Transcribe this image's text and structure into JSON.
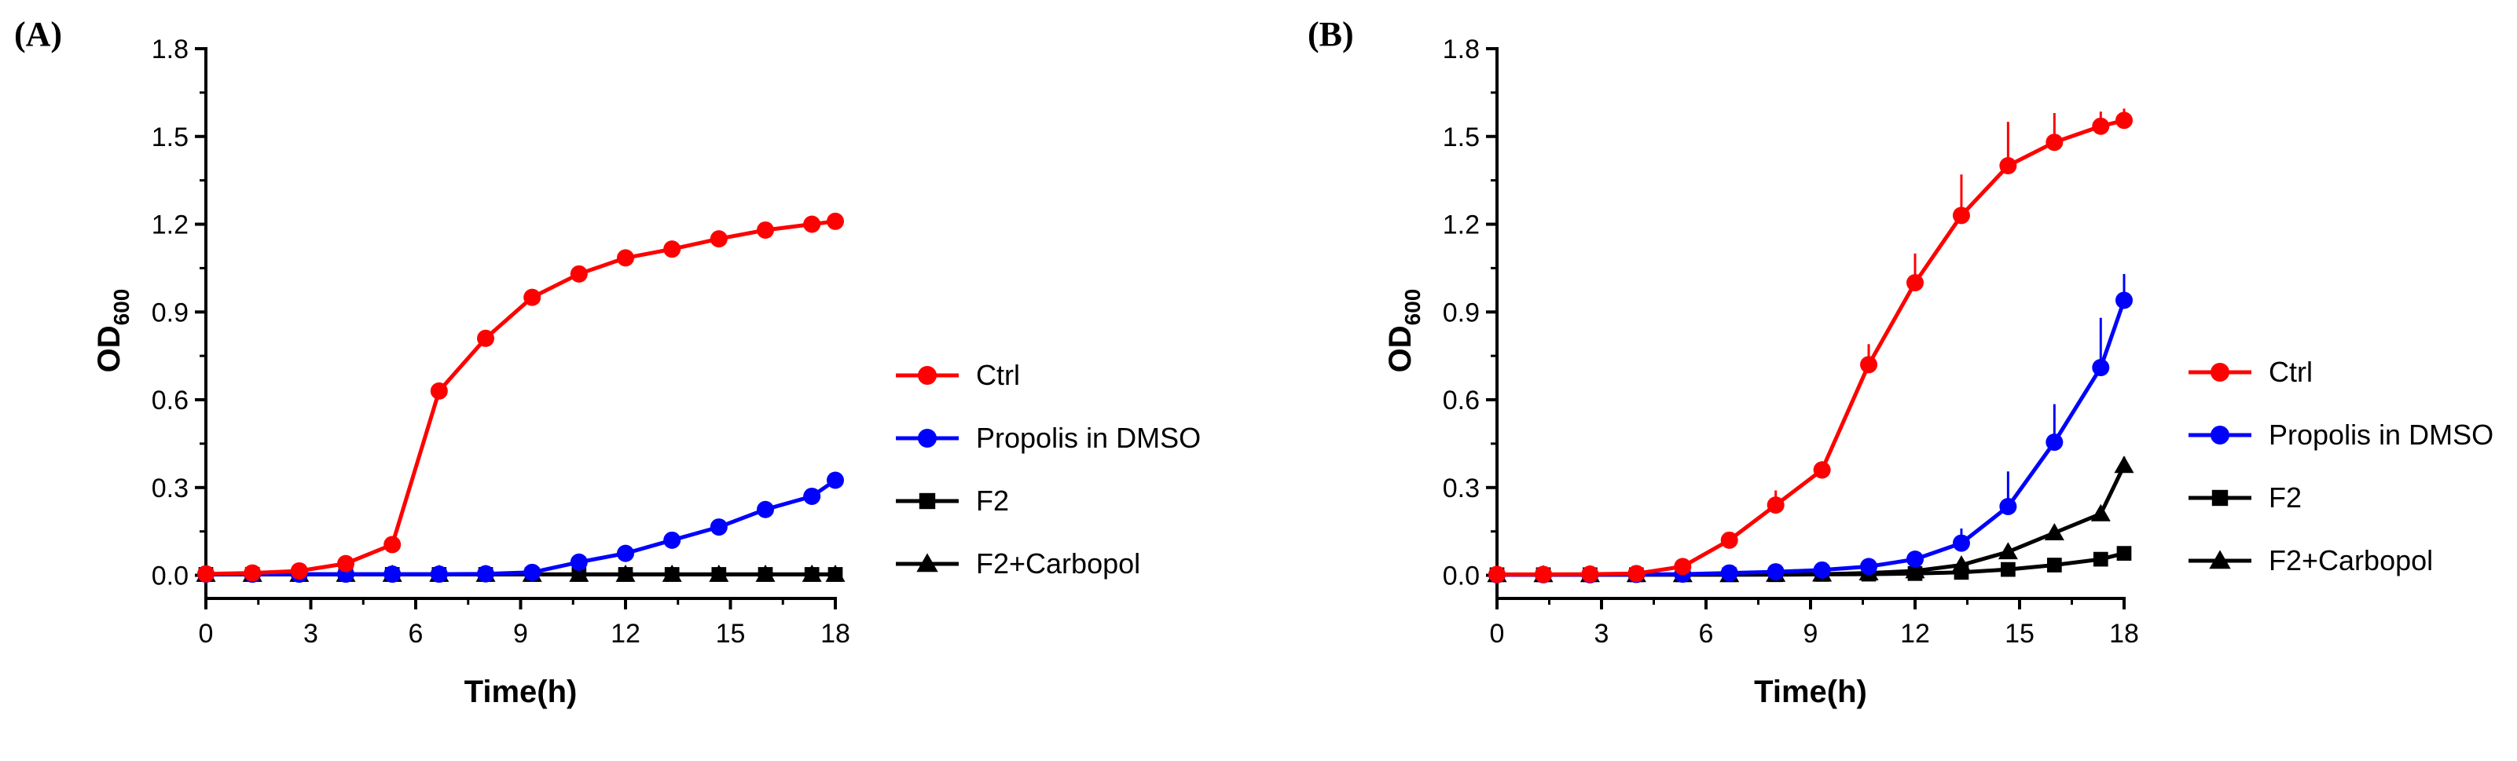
{
  "figure": {
    "panels": [
      {
        "label": "(A)"
      },
      {
        "label": "(B)"
      }
    ]
  },
  "chart_data": [
    {
      "type": "line",
      "panel_label": "(A)",
      "title": "",
      "xlabel": "Time(h)",
      "ylabel": "OD",
      "ylabel_subscript": "600",
      "xlim": [
        0,
        18
      ],
      "ylim": [
        -0.02,
        1.8
      ],
      "xticks": [
        "0",
        "3",
        "6",
        "9",
        "12",
        "15",
        "18"
      ],
      "xtick_values": [
        0,
        3,
        6,
        9,
        12,
        15,
        18
      ],
      "yticks": [
        "0.0",
        "0.3",
        "0.6",
        "0.9",
        "1.2",
        "1.5",
        "1.8"
      ],
      "ytick_values": [
        0,
        0.3,
        0.6,
        0.9,
        1.2,
        1.5,
        1.8
      ],
      "grid": false,
      "legend_position": "right",
      "x": [
        0,
        1.33,
        2.67,
        4,
        5.33,
        6.67,
        8,
        9.33,
        10.67,
        12,
        13.33,
        14.67,
        16,
        17.33,
        18
      ],
      "series": [
        {
          "name": "Ctrl",
          "color": "#ff0000",
          "marker": "circle",
          "values": [
            0.005,
            0.008,
            0.015,
            0.04,
            0.105,
            0.63,
            0.81,
            0.95,
            1.03,
            1.085,
            1.115,
            1.15,
            1.18,
            1.2,
            1.21
          ],
          "errors": [
            0,
            0,
            0,
            0,
            0,
            0,
            0,
            0,
            0,
            0,
            0,
            0,
            0,
            0,
            0
          ]
        },
        {
          "name": "Propolis in DMSO",
          "color": "#0000ff",
          "marker": "circle",
          "values": [
            0.004,
            0.004,
            0.004,
            0.004,
            0.004,
            0.004,
            0.005,
            0.01,
            0.045,
            0.075,
            0.12,
            0.165,
            0.225,
            0.27,
            0.325
          ],
          "errors": [
            0,
            0,
            0,
            0,
            0,
            0,
            0,
            0,
            0,
            0,
            0,
            0,
            0,
            0,
            0.02
          ]
        },
        {
          "name": "F2",
          "color": "#000000",
          "marker": "square",
          "values": [
            0.003,
            0.003,
            0.003,
            0.003,
            0.003,
            0.003,
            0.003,
            0.003,
            0.003,
            0.003,
            0.003,
            0.003,
            0.003,
            0.003,
            0.003
          ],
          "errors": [
            0,
            0,
            0,
            0,
            0,
            0,
            0,
            0,
            0,
            0,
            0,
            0,
            0,
            0,
            0
          ]
        },
        {
          "name": "F2+Carbopol",
          "color": "#000000",
          "marker": "triangle",
          "values": [
            0.003,
            0.003,
            0.003,
            0.003,
            0.003,
            0.003,
            0.003,
            0.003,
            0.003,
            0.003,
            0.003,
            0.003,
            0.003,
            0.003,
            0.003
          ],
          "errors": [
            0,
            0,
            0,
            0,
            0,
            0,
            0,
            0,
            0,
            0,
            0,
            0,
            0,
            0,
            0
          ]
        }
      ]
    },
    {
      "type": "line",
      "panel_label": "(B)",
      "title": "",
      "xlabel": "Time(h)",
      "ylabel": "OD",
      "ylabel_subscript": "600",
      "xlim": [
        0,
        18
      ],
      "ylim": [
        -0.02,
        1.8
      ],
      "xticks": [
        "0",
        "3",
        "6",
        "9",
        "12",
        "15",
        "18"
      ],
      "xtick_values": [
        0,
        3,
        6,
        9,
        12,
        15,
        18
      ],
      "yticks": [
        "0.0",
        "0.3",
        "0.6",
        "0.9",
        "1.2",
        "1.5",
        "1.8"
      ],
      "ytick_values": [
        0,
        0.3,
        0.6,
        0.9,
        1.2,
        1.5,
        1.8
      ],
      "grid": false,
      "legend_position": "right",
      "x": [
        0,
        1.33,
        2.67,
        4,
        5.33,
        6.67,
        8,
        9.33,
        10.67,
        12,
        13.33,
        14.67,
        16,
        17.33,
        18
      ],
      "series": [
        {
          "name": "Ctrl",
          "color": "#ff0000",
          "marker": "circle",
          "values": [
            0.003,
            0.003,
            0.004,
            0.006,
            0.03,
            0.12,
            0.24,
            0.36,
            0.72,
            1.0,
            1.23,
            1.4,
            1.48,
            1.535,
            1.555
          ],
          "errors": [
            0,
            0,
            0,
            0,
            0.01,
            0.02,
            0.05,
            0.03,
            0.07,
            0.1,
            0.14,
            0.15,
            0.1,
            0.05,
            0.04
          ]
        },
        {
          "name": "Propolis in DMSO",
          "color": "#0000ff",
          "marker": "circle",
          "values": [
            0.002,
            0.002,
            0.002,
            0.003,
            0.004,
            0.008,
            0.012,
            0.018,
            0.03,
            0.055,
            0.11,
            0.235,
            0.455,
            0.71,
            0.94
          ],
          "errors": [
            0,
            0,
            0,
            0,
            0,
            0,
            0,
            0,
            0.01,
            0.015,
            0.05,
            0.12,
            0.13,
            0.17,
            0.09
          ]
        },
        {
          "name": "F2",
          "color": "#000000",
          "marker": "square",
          "values": [
            0.002,
            0.002,
            0.002,
            0.002,
            0.002,
            0.002,
            0.002,
            0.003,
            0.004,
            0.006,
            0.01,
            0.02,
            0.035,
            0.055,
            0.075
          ],
          "errors": [
            0,
            0,
            0,
            0,
            0,
            0,
            0,
            0,
            0,
            0,
            0,
            0,
            0.01,
            0.01,
            0.015
          ]
        },
        {
          "name": "F2+Carbopol",
          "color": "#000000",
          "marker": "triangle",
          "values": [
            0.002,
            0.002,
            0.002,
            0.002,
            0.002,
            0.002,
            0.003,
            0.004,
            0.008,
            0.015,
            0.035,
            0.08,
            0.145,
            0.21,
            0.375
          ],
          "errors": [
            0,
            0,
            0,
            0,
            0,
            0,
            0,
            0,
            0,
            0.005,
            0.01,
            0.015,
            0.015,
            0.02,
            0.03
          ]
        }
      ]
    }
  ]
}
